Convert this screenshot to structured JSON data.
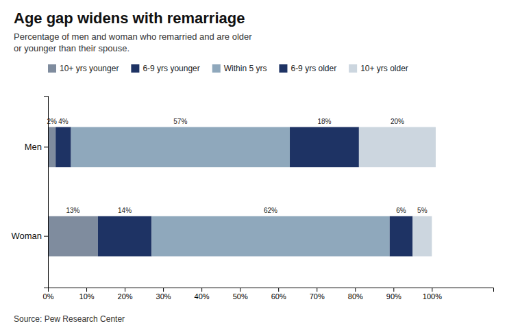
{
  "chart_data": {
    "type": "bar",
    "orientation": "horizontal",
    "stacked": true,
    "data_labels": true,
    "grid": false,
    "legend": "top",
    "title": "Age gap widens with remarriage",
    "subtitle": "Percentage of men and woman who remarried and are older\nor younger than their spouse.",
    "annotations": [
      "Source: Pew Research Center"
    ],
    "categories": [
      "Men",
      "Woman"
    ],
    "series": [
      {
        "name": "10+ yrs younger",
        "color": "#7f8c9e",
        "values": [
          2,
          13
        ],
        "value_labels": [
          "2%",
          "13%"
        ]
      },
      {
        "name": "6-9 yrs younger",
        "color": "#1e3364",
        "values": [
          4,
          14
        ],
        "value_labels": [
          "4%",
          "14%"
        ]
      },
      {
        "name": "Within 5 yrs",
        "color": "#8fa8bc",
        "values": [
          57,
          62
        ],
        "value_labels": [
          "57%",
          "62%"
        ]
      },
      {
        "name": "6-9 yrs older",
        "color": "#1e3364",
        "values": [
          18,
          6
        ],
        "value_labels": [
          "18%",
          "6%"
        ]
      },
      {
        "name": "10+ yrs older",
        "color": "#ccd6df",
        "values": [
          20,
          5
        ],
        "value_labels": [
          "20%",
          "5%"
        ]
      }
    ],
    "xlim": [
      0,
      116
    ],
    "xticks": [
      {
        "value": 0,
        "label": "0%"
      },
      {
        "value": 10,
        "label": "10%"
      },
      {
        "value": 20,
        "label": "20%"
      },
      {
        "value": 30,
        "label": "30%"
      },
      {
        "value": 40,
        "label": "40%"
      },
      {
        "value": 50,
        "label": "50%"
      },
      {
        "value": 60,
        "label": "60%"
      },
      {
        "value": 70,
        "label": "70%"
      },
      {
        "value": 80,
        "label": "80%"
      },
      {
        "value": 90,
        "label": "90%"
      },
      {
        "value": 100,
        "label": "100%"
      }
    ]
  }
}
